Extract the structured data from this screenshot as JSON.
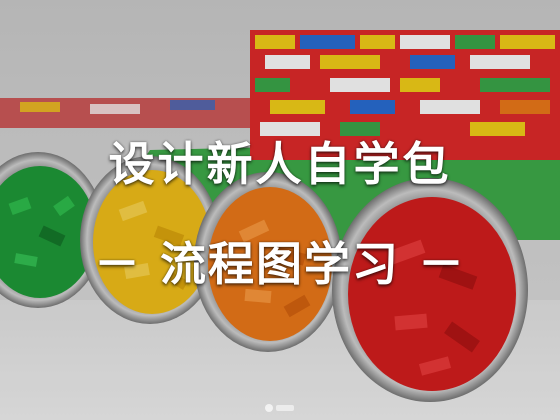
{
  "title": "设计新人自学包",
  "subtitle": "－ 流程图学习 －",
  "colors": {
    "green": "#1f9d3a",
    "yellow": "#f5c21a",
    "orange": "#f07a1a",
    "red": "#d81e1e",
    "baseplate": "#3fae4a"
  }
}
